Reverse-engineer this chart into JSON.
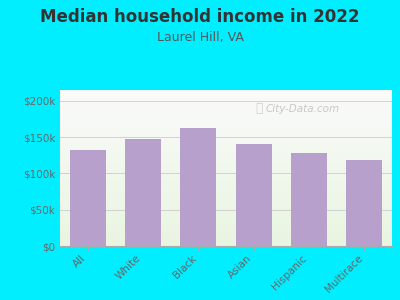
{
  "title": "Median household income in 2022",
  "subtitle": "Laurel Hill, VA",
  "categories": [
    "All",
    "White",
    "Black",
    "Asian",
    "Hispanic",
    "Multirace"
  ],
  "values": [
    132000,
    147000,
    162000,
    140000,
    128000,
    118000
  ],
  "bar_color": "#b8a0cc",
  "background_outer": "#00eeff",
  "title_color": "#333333",
  "subtitle_color": "#555555",
  "tick_label_color": "#666666",
  "ylabel_ticks": [
    0,
    50000,
    100000,
    150000,
    200000
  ],
  "ylabel_labels": [
    "$0",
    "$50k",
    "$100k",
    "$150k",
    "$200k"
  ],
  "ylim": [
    0,
    215000
  ],
  "watermark": "City-Data.com",
  "title_fontsize": 12,
  "subtitle_fontsize": 9,
  "tick_fontsize": 7.5
}
